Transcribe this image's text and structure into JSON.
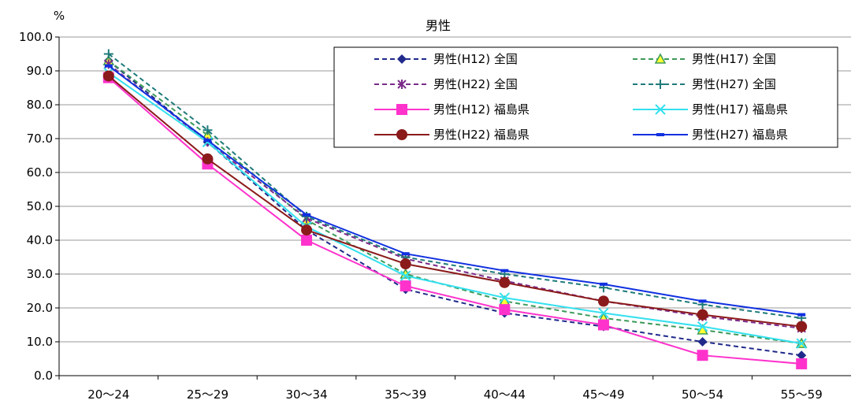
{
  "chart_data": {
    "type": "line",
    "title": "男性",
    "ylabel": "%",
    "xlabel": "",
    "ylim": [
      0,
      100
    ],
    "y_ticks": [
      "0.0",
      "10.0",
      "20.0",
      "30.0",
      "40.0",
      "50.0",
      "60.0",
      "70.0",
      "80.0",
      "90.0",
      "100.0"
    ],
    "categories": [
      "20～24",
      "25～29",
      "30～34",
      "35～39",
      "40～44",
      "45～49",
      "50～54",
      "55～59"
    ],
    "grid": "horizontal",
    "legend_position": "top-right",
    "series": [
      {
        "name": "男性(H12) 全国",
        "color": "#1f2a8a",
        "dash": "dashed",
        "marker": "diamond",
        "values": [
          93.0,
          69.0,
          43.0,
          25.5,
          18.5,
          14.5,
          10.0,
          6.0
        ]
      },
      {
        "name": "男性(H17) 全国",
        "color": "#3c9a5a",
        "dash": "dashed",
        "marker": "triangle",
        "values": [
          93.0,
          71.0,
          46.0,
          30.0,
          22.0,
          17.0,
          13.5,
          9.5
        ]
      },
      {
        "name": "男性(H22) 全国",
        "color": "#7b2a8a",
        "dash": "dashed",
        "marker": "asterisk",
        "values": [
          92.0,
          69.0,
          46.5,
          34.5,
          28.0,
          22.0,
          17.5,
          14.0
        ]
      },
      {
        "name": "男性(H27) 全国",
        "color": "#1f7a7a",
        "dash": "dashed",
        "marker": "plus",
        "values": [
          95.0,
          72.5,
          47.0,
          35.0,
          30.0,
          26.0,
          21.0,
          17.0
        ]
      },
      {
        "name": "男性(H12) 福島県",
        "color": "#ff33cc",
        "dash": "solid",
        "marker": "square",
        "values": [
          88.0,
          62.5,
          40.0,
          26.5,
          19.5,
          15.0,
          6.0,
          3.5
        ]
      },
      {
        "name": "男性(H17) 福島県",
        "color": "#33e0ee",
        "dash": "solid",
        "marker": "x",
        "values": [
          89.5,
          69.0,
          44.0,
          29.5,
          23.0,
          18.5,
          14.5,
          9.5
        ]
      },
      {
        "name": "男性(H22) 福島県",
        "color": "#8b1a1a",
        "dash": "solid",
        "marker": "circle",
        "values": [
          88.5,
          64.0,
          43.0,
          33.0,
          27.5,
          22.0,
          18.0,
          14.5
        ]
      },
      {
        "name": "男性(H27) 福島県",
        "color": "#1030e0",
        "dash": "solid",
        "marker": "dash",
        "values": [
          91.5,
          69.5,
          47.5,
          36.0,
          31.0,
          27.0,
          22.0,
          18.0
        ]
      }
    ]
  }
}
